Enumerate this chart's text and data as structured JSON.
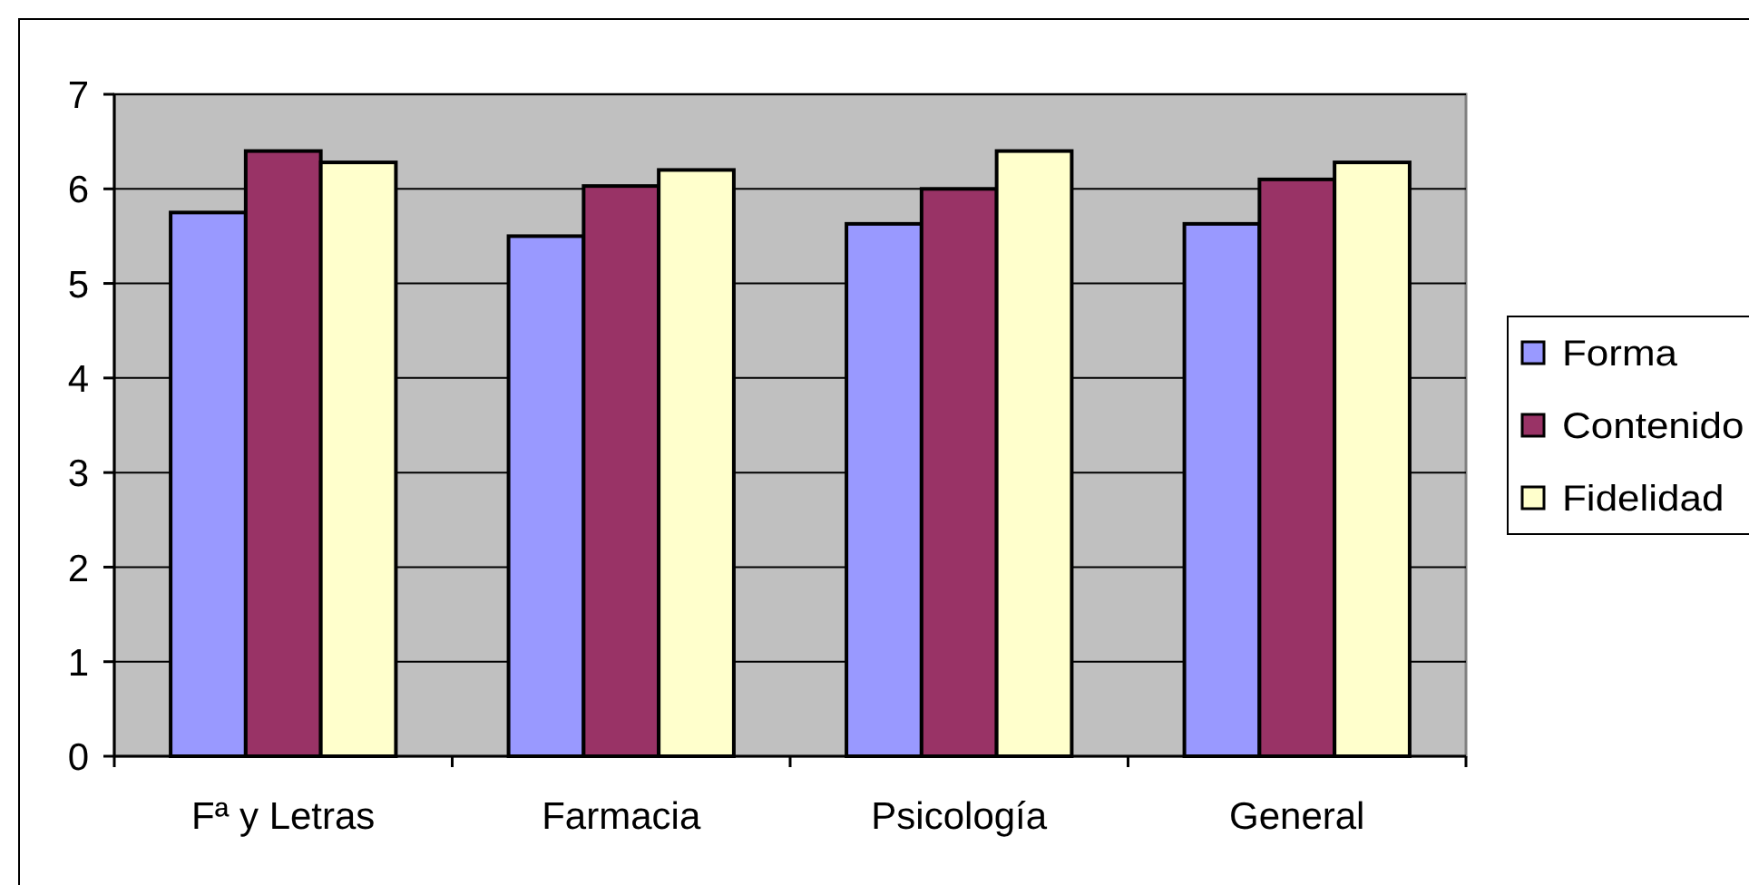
{
  "chart_data": {
    "type": "bar",
    "categories": [
      "Fª y Letras",
      "Farmacia",
      "Psicología",
      "General"
    ],
    "series": [
      {
        "name": "Forma",
        "color": "#9999ff",
        "values": [
          5.75,
          5.5,
          5.63,
          5.63
        ]
      },
      {
        "name": "Contenido",
        "color": "#993366",
        "values": [
          6.4,
          6.03,
          6.0,
          6.1
        ]
      },
      {
        "name": "Fidelidad",
        "color": "#ffffcc",
        "values": [
          6.28,
          6.2,
          6.4,
          6.28
        ]
      }
    ],
    "ylim": [
      0,
      7
    ],
    "yticks": [
      0,
      1,
      2,
      3,
      4,
      5,
      6,
      7
    ],
    "grid": "y",
    "legend": "right"
  }
}
